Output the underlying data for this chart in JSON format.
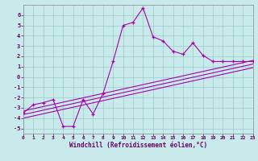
{
  "background_color": "#c8eaea",
  "line_color": "#aa00aa",
  "xmin": 0,
  "xmax": 23,
  "ymin": -5.5,
  "ymax": 7.0,
  "zigzag_x": [
    0,
    1,
    2,
    3,
    4,
    5,
    6,
    7,
    8,
    9,
    10,
    11,
    12,
    13,
    14,
    15,
    16,
    17,
    18,
    19,
    20,
    21,
    22,
    23
  ],
  "zigzag_y": [
    -3.5,
    -2.7,
    -2.5,
    -2.2,
    -4.8,
    -4.8,
    -2.2,
    -3.6,
    -1.6,
    1.5,
    5.0,
    5.3,
    6.7,
    3.9,
    3.5,
    2.5,
    2.2,
    3.3,
    2.1,
    1.5,
    1.5,
    1.5,
    1.5,
    1.5
  ],
  "line1_x": [
    0,
    23
  ],
  "line1_y": [
    -3.3,
    1.6
  ],
  "line2_x": [
    0,
    23
  ],
  "line2_y": [
    -3.65,
    1.25
  ],
  "line3_x": [
    0,
    23
  ],
  "line3_y": [
    -4.0,
    0.9
  ],
  "ytick_vals": [
    -5,
    -4,
    -3,
    -2,
    -1,
    0,
    1,
    2,
    3,
    4,
    5,
    6
  ],
  "xtick_vals": [
    0,
    1,
    2,
    3,
    4,
    5,
    6,
    7,
    8,
    9,
    10,
    11,
    12,
    13,
    14,
    15,
    16,
    17,
    18,
    19,
    20,
    21,
    22,
    23
  ],
  "xlabel": "Windchill (Refroidissement éolien,°C)",
  "grid_color": "#99cccc"
}
